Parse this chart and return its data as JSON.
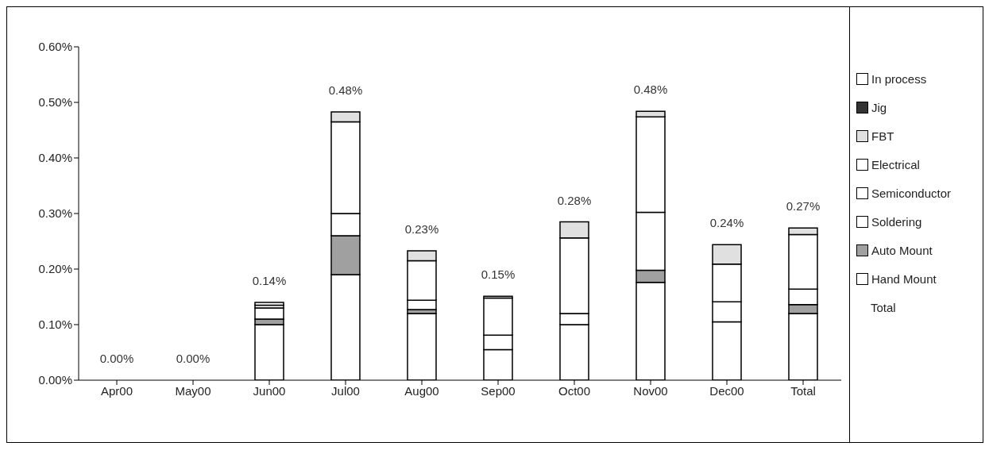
{
  "chart_data": {
    "type": "bar",
    "stacked": true,
    "categories": [
      "Apr00",
      "May00",
      "Jun00",
      "Jul00",
      "Aug00",
      "Sep00",
      "Oct00",
      "Nov00",
      "Dec00",
      "Total"
    ],
    "series": [
      {
        "name": "Hand Mount",
        "color": "#ffffff",
        "values": [
          0,
          0,
          0.1,
          0.19,
          0.12,
          0.055,
          0.1,
          0.176,
          0.105,
          0.12
        ]
      },
      {
        "name": "Auto Mount",
        "color": "#a0a0a0",
        "values": [
          0,
          0,
          0.01,
          0.07,
          0.007,
          0,
          0,
          0.022,
          0,
          0.016
        ]
      },
      {
        "name": "Soldering",
        "color": "#ffffff",
        "values": [
          0,
          0,
          0.02,
          0.04,
          0.017,
          0.026,
          0.02,
          0.104,
          0.036,
          0.028
        ]
      },
      {
        "name": "Semiconductor",
        "color": "#ffffff",
        "values": [
          0,
          0,
          0.005,
          0.165,
          0.071,
          0.067,
          0.136,
          0.172,
          0.068,
          0.098
        ]
      },
      {
        "name": "Electrical",
        "color": "#ffffff",
        "values": [
          0,
          0,
          0.005,
          0,
          0,
          0,
          0,
          0,
          0,
          0
        ]
      },
      {
        "name": "FBT",
        "color": "#e0e0e0",
        "values": [
          0,
          0,
          0,
          0.018,
          0.018,
          0.003,
          0.029,
          0.01,
          0.035,
          0.012
        ]
      },
      {
        "name": "Jig",
        "color": "#333333",
        "values": [
          0,
          0,
          0,
          0,
          0,
          0,
          0,
          0,
          0,
          0
        ]
      },
      {
        "name": "In process",
        "color": "#ffffff",
        "values": [
          0,
          0,
          0,
          0,
          0,
          0,
          0,
          0,
          0,
          0
        ]
      }
    ],
    "annotations": [
      "Total"
    ],
    "totals": [
      "0.00%",
      "0.00%",
      "0.14%",
      "0.48%",
      "0.23%",
      "0.15%",
      "0.28%",
      "0.48%",
      "0.24%",
      "0.27%"
    ],
    "ylim": [
      0,
      0.6
    ],
    "yticks": [
      {
        "value": 0,
        "label": "0.00%"
      },
      {
        "value": 0.1,
        "label": "0.10%"
      },
      {
        "value": 0.2,
        "label": "0.20%"
      },
      {
        "value": 0.3,
        "label": "0.30%"
      },
      {
        "value": 0.4,
        "label": "0.40%"
      },
      {
        "value": 0.5,
        "label": "0.50%"
      },
      {
        "value": 0.6,
        "label": "0.60%"
      }
    ],
    "grid": false,
    "legend": "right"
  }
}
